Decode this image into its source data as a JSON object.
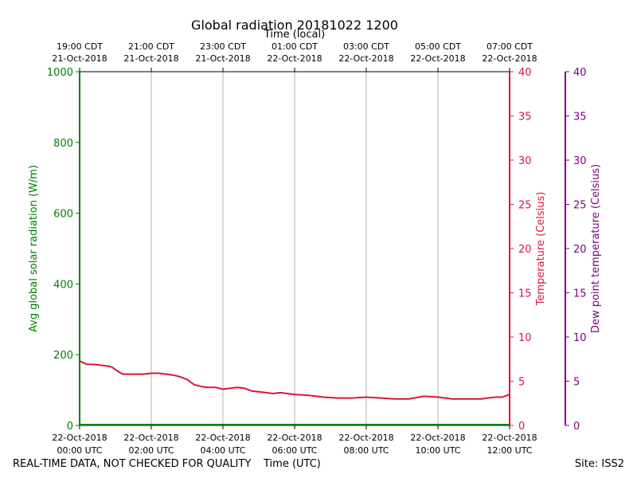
{
  "chart_data": {
    "type": "line",
    "title": "Global radiation 20181022 1200",
    "top_axis_label": "Time (local)",
    "xlabel": "Time (UTC)",
    "ylabel_left": "Avg global solar radiation (W/m)",
    "ylabel_right": "Temperature (Celsius)",
    "ylabel_right2": "Dew point temperature (Celsius)",
    "xlim_hours": [
      0,
      12
    ],
    "ylim_left": [
      0,
      1000
    ],
    "ylim_right": [
      0,
      40
    ],
    "ylim_right2": [
      0,
      40
    ],
    "y_ticks_left": [
      "0",
      "200",
      "400",
      "600",
      "800",
      "1000"
    ],
    "y_ticks_right": [
      "0",
      "5",
      "10",
      "15",
      "20",
      "25",
      "30",
      "35",
      "40"
    ],
    "bottom_ticks": [
      {
        "hour": 0,
        "date": "22-Oct-2018",
        "time": "00:00 UTC"
      },
      {
        "hour": 2,
        "date": "22-Oct-2018",
        "time": "02:00 UTC"
      },
      {
        "hour": 4,
        "date": "22-Oct-2018",
        "time": "04:00 UTC"
      },
      {
        "hour": 6,
        "date": "22-Oct-2018",
        "time": "06:00 UTC"
      },
      {
        "hour": 8,
        "date": "22-Oct-2018",
        "time": "08:00 UTC"
      },
      {
        "hour": 10,
        "date": "22-Oct-2018",
        "time": "10:00 UTC"
      },
      {
        "hour": 12,
        "date": "22-Oct-2018",
        "time": "12:00 UTC"
      }
    ],
    "top_ticks": [
      {
        "hour": 0,
        "time": "19:00 CDT",
        "date": "21-Oct-2018"
      },
      {
        "hour": 2,
        "time": "21:00 CDT",
        "date": "21-Oct-2018"
      },
      {
        "hour": 4,
        "time": "23:00 CDT",
        "date": "21-Oct-2018"
      },
      {
        "hour": 6,
        "time": "01:00 CDT",
        "date": "22-Oct-2018"
      },
      {
        "hour": 8,
        "time": "03:00 CDT",
        "date": "22-Oct-2018"
      },
      {
        "hour": 10,
        "time": "05:00 CDT",
        "date": "22-Oct-2018"
      },
      {
        "hour": 12,
        "time": "07:00 CDT",
        "date": "22-Oct-2018"
      }
    ],
    "series": [
      {
        "name": "Temperature",
        "color": "#dc143c",
        "axis": "right",
        "x": [
          0.0,
          0.1,
          0.2,
          0.4,
          0.6,
          0.8,
          0.9,
          1.0,
          1.2,
          1.4,
          1.6,
          1.8,
          2.0,
          2.2,
          2.4,
          2.6,
          2.8,
          3.0,
          3.2,
          3.4,
          3.6,
          3.8,
          4.0,
          4.2,
          4.4,
          4.6,
          4.8,
          5.0,
          5.2,
          5.4,
          5.6,
          5.8,
          6.0,
          6.4,
          6.8,
          7.2,
          7.6,
          8.0,
          8.4,
          8.8,
          9.2,
          9.6,
          10.0,
          10.4,
          10.8,
          11.2,
          11.6,
          11.8,
          12.0
        ],
        "values": [
          7.3,
          7.1,
          6.9,
          6.9,
          6.8,
          6.7,
          6.6,
          6.3,
          5.8,
          5.8,
          5.8,
          5.8,
          5.9,
          5.9,
          5.8,
          5.7,
          5.5,
          5.2,
          4.6,
          4.4,
          4.3,
          4.3,
          4.1,
          4.2,
          4.3,
          4.2,
          3.9,
          3.8,
          3.7,
          3.6,
          3.7,
          3.6,
          3.5,
          3.4,
          3.2,
          3.1,
          3.1,
          3.2,
          3.1,
          3.0,
          3.0,
          3.3,
          3.2,
          3.0,
          3.0,
          3.0,
          3.2,
          3.2,
          3.5
        ]
      }
    ]
  },
  "footer": {
    "left_note": "REAL-TIME DATA, NOT CHECKED FOR QUALITY",
    "site": "Site: ISS2"
  }
}
